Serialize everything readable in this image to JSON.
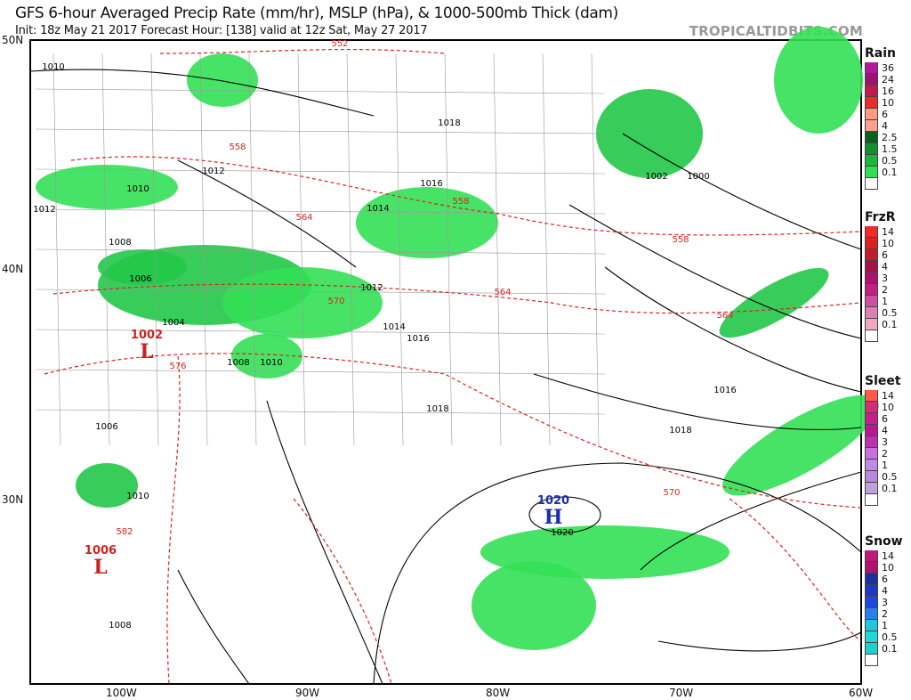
{
  "header": {
    "title": "GFS 6-hour Averaged Precip Rate (mm/hr), MSLP (hPa), & 1000-500mb Thick (dam)",
    "subtitle": "Init: 18z May 21 2017   Forecast Hour: [138]   valid at 12z Sat, May 27 2017",
    "brand": "TROPICALTIDBITS.COM"
  },
  "axes": {
    "lat": [
      "50N",
      "40N",
      "30N"
    ],
    "lon": [
      "100W",
      "90W",
      "80W",
      "70W",
      "60W"
    ]
  },
  "colors": {
    "precip": "#22dd44",
    "isobar": "#000000",
    "thickness": "#e02020",
    "low": "#cc2222",
    "high": "#1a2eb0"
  },
  "pressure_labels": [
    "1010",
    "1012",
    "1010",
    "1012",
    "1008",
    "1006",
    "1004",
    "1008",
    "1010",
    "1006",
    "1010",
    "1008",
    "1018",
    "1016",
    "1014",
    "1012",
    "1014",
    "1016",
    "1018",
    "1016",
    "1018",
    "1020",
    "1002",
    "1000"
  ],
  "thickness_labels": [
    "552",
    "558",
    "564",
    "570",
    "576",
    "582",
    "558",
    "564",
    "558",
    "564",
    "570"
  ],
  "centers": [
    {
      "value": "1002",
      "letter": "L",
      "type": "low"
    },
    {
      "value": "1006",
      "letter": "L",
      "type": "low"
    },
    {
      "value": "1020",
      "letter": "H",
      "type": "high"
    }
  ],
  "legends": [
    {
      "title": "Rain",
      "levels": [
        "36",
        "24",
        "16",
        "10",
        "6",
        "4",
        "2.5",
        "1.5",
        "0.5",
        "0.1"
      ],
      "colors": [
        "#b01a98",
        "#a01070",
        "#c01a50",
        "#ee2a2a",
        "#ff9a80",
        "#ff9f90",
        "#0a6020",
        "#109030",
        "#18b838",
        "#30e050"
      ]
    },
    {
      "title": "FrzR",
      "levels": [
        "14",
        "10",
        "6",
        "4",
        "3",
        "2",
        "1",
        "0.5",
        "0.1"
      ],
      "colors": [
        "#ee2a2a",
        "#e02020",
        "#c81a2a",
        "#a8104a",
        "#b01070",
        "#c02080",
        "#d050a0",
        "#e080b0",
        "#f4a8c0"
      ]
    },
    {
      "title": "Sleet",
      "levels": [
        "14",
        "10",
        "6",
        "4",
        "3",
        "2",
        "1",
        "0.5",
        "0.1"
      ],
      "colors": [
        "#ff5a4a",
        "#d82a7a",
        "#c82088",
        "#b81890",
        "#c030b0",
        "#c870e0",
        "#c08ae8",
        "#b888e0",
        "#c0a0e0"
      ]
    },
    {
      "title": "Snow",
      "levels": [
        "14",
        "10",
        "6",
        "4",
        "3",
        "2",
        "1",
        "0.5",
        "0.1"
      ],
      "colors": [
        "#c01878",
        "#b01070",
        "#1a30a0",
        "#1a38c0",
        "#1a48e0",
        "#2a80e8",
        "#20c8d8",
        "#20d8d8",
        "#20d0d0"
      ]
    }
  ]
}
